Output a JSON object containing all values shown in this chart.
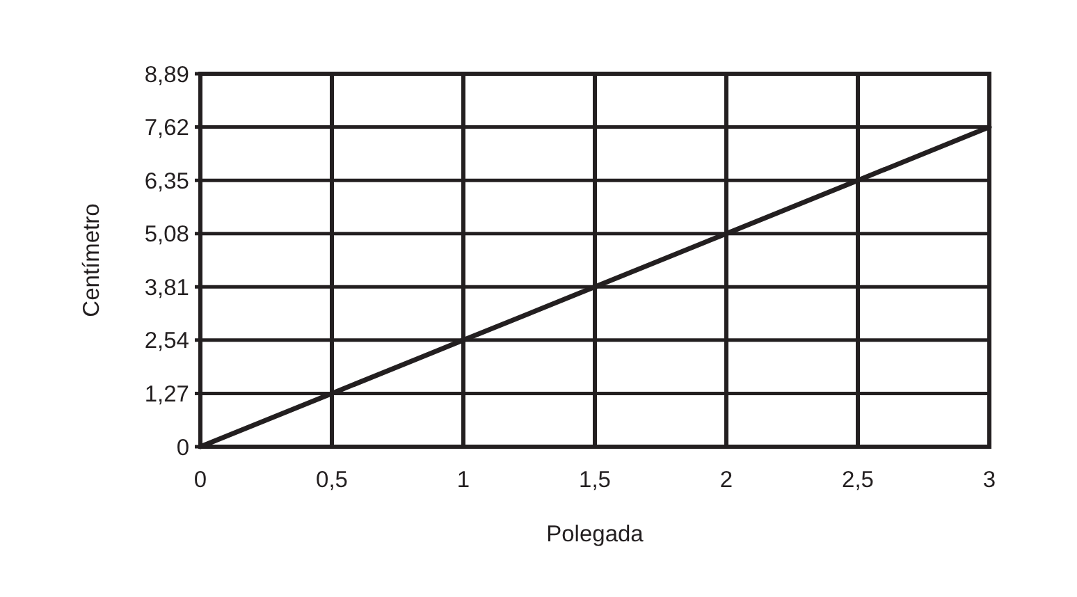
{
  "chart_data": {
    "type": "line",
    "xlabel": "Polegada",
    "ylabel": "Centímetro",
    "x": [
      0,
      0.5,
      1,
      1.5,
      2,
      2.5,
      3
    ],
    "values": [
      0,
      1.27,
      2.54,
      3.81,
      5.08,
      6.35,
      7.62
    ],
    "color": "#231f20",
    "xlim": [
      0,
      3
    ],
    "ylim": [
      0,
      8.89
    ],
    "xticks": [
      0,
      {
        "value": 0.5,
        "label": "0,5"
      },
      1,
      {
        "value": 1.5,
        "label": "1,5"
      },
      2,
      {
        "value": 2.5,
        "label": "2,5"
      },
      3
    ],
    "yticks": [
      0,
      {
        "value": 1.27,
        "label": "1,27"
      },
      {
        "value": 2.54,
        "label": "2,54"
      },
      {
        "value": 3.81,
        "label": "3,81"
      },
      {
        "value": 5.08,
        "label": "5,08"
      },
      {
        "value": 6.35,
        "label": "6,35"
      },
      {
        "value": 7.62,
        "label": "7,62"
      },
      {
        "value": 8.89,
        "label": "8,89"
      }
    ],
    "grid": true
  }
}
